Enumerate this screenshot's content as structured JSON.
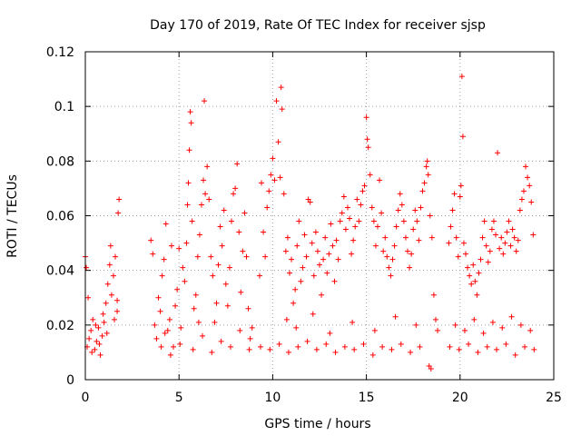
{
  "chart_data": {
    "type": "scatter",
    "title": "Day 170 of 2019, Rate Of TEC Index for receiver sjsp",
    "xlabel": "GPS time / hours",
    "ylabel": "ROTI / TECUs",
    "xlim": [
      0,
      25
    ],
    "ylim": [
      0,
      0.12
    ],
    "x_ticks": [
      0,
      5,
      10,
      15,
      20,
      25
    ],
    "x_tick_labels": [
      "0",
      "5",
      "10",
      "15",
      "20",
      "25"
    ],
    "y_ticks": [
      0,
      0.02,
      0.04,
      0.06,
      0.08,
      0.1,
      0.12
    ],
    "y_tick_labels": [
      "0",
      "0.02",
      "0.04",
      "0.06",
      "0.08",
      "0.1",
      "0.12"
    ],
    "grid": true,
    "marker": "+",
    "color": "#ff0000",
    "series": [
      {
        "name": "ROTI",
        "points": [
          [
            0.0,
            0.045
          ],
          [
            0.05,
            0.041
          ],
          [
            0.1,
            0.012
          ],
          [
            0.2,
            0.015
          ],
          [
            0.3,
            0.018
          ],
          [
            0.4,
            0.022
          ],
          [
            0.5,
            0.011
          ],
          [
            0.6,
            0.014
          ],
          [
            0.7,
            0.019
          ],
          [
            0.8,
            0.009
          ],
          [
            0.9,
            0.016
          ],
          [
            1.0,
            0.021
          ],
          [
            1.1,
            0.028
          ],
          [
            1.2,
            0.035
          ],
          [
            1.3,
            0.042
          ],
          [
            1.4,
            0.031
          ],
          [
            1.5,
            0.038
          ],
          [
            1.6,
            0.045
          ],
          [
            1.7,
            0.025
          ],
          [
            1.75,
            0.061
          ],
          [
            1.8,
            0.066
          ],
          [
            0.15,
            0.03
          ],
          [
            0.35,
            0.01
          ],
          [
            0.55,
            0.02
          ],
          [
            0.75,
            0.013
          ],
          [
            0.95,
            0.024
          ],
          [
            1.15,
            0.017
          ],
          [
            1.35,
            0.049
          ],
          [
            1.55,
            0.022
          ],
          [
            1.7,
            0.029
          ],
          [
            3.5,
            0.051
          ],
          [
            3.6,
            0.046
          ],
          [
            3.7,
            0.02
          ],
          [
            3.8,
            0.015
          ],
          [
            3.9,
            0.03
          ],
          [
            4.0,
            0.025
          ],
          [
            4.1,
            0.038
          ],
          [
            4.2,
            0.044
          ],
          [
            4.3,
            0.057
          ],
          [
            4.4,
            0.018
          ],
          [
            4.5,
            0.022
          ],
          [
            4.6,
            0.049
          ],
          [
            4.7,
            0.012
          ],
          [
            4.8,
            0.027
          ],
          [
            4.9,
            0.033
          ],
          [
            5.0,
            0.048
          ],
          [
            5.1,
            0.019
          ],
          [
            5.2,
            0.041
          ],
          [
            5.3,
            0.036
          ],
          [
            5.4,
            0.05
          ],
          [
            5.45,
            0.064
          ],
          [
            5.5,
            0.072
          ],
          [
            5.55,
            0.084
          ],
          [
            5.6,
            0.098
          ],
          [
            5.65,
            0.094
          ],
          [
            5.7,
            0.058
          ],
          [
            5.8,
            0.026
          ],
          [
            5.9,
            0.031
          ],
          [
            6.0,
            0.045
          ],
          [
            6.1,
            0.053
          ],
          [
            6.2,
            0.064
          ],
          [
            6.3,
            0.073
          ],
          [
            6.35,
            0.102
          ],
          [
            6.4,
            0.068
          ],
          [
            6.5,
            0.078
          ],
          [
            6.6,
            0.066
          ],
          [
            6.7,
            0.045
          ],
          [
            6.8,
            0.038
          ],
          [
            6.9,
            0.021
          ],
          [
            7.0,
            0.028
          ],
          [
            7.1,
            0.042
          ],
          [
            7.2,
            0.056
          ],
          [
            7.3,
            0.049
          ],
          [
            7.4,
            0.062
          ],
          [
            7.5,
            0.035
          ],
          [
            7.6,
            0.027
          ],
          [
            7.7,
            0.041
          ],
          [
            7.8,
            0.058
          ],
          [
            7.9,
            0.068
          ],
          [
            8.0,
            0.07
          ],
          [
            8.1,
            0.079
          ],
          [
            8.2,
            0.054
          ],
          [
            8.3,
            0.032
          ],
          [
            8.4,
            0.047
          ],
          [
            8.5,
            0.061
          ],
          [
            8.6,
            0.045
          ],
          [
            8.7,
            0.026
          ],
          [
            8.8,
            0.015
          ],
          [
            8.9,
            0.019
          ],
          [
            4.05,
            0.012
          ],
          [
            4.55,
            0.009
          ],
          [
            5.05,
            0.013
          ],
          [
            5.75,
            0.011
          ],
          [
            6.25,
            0.016
          ],
          [
            6.75,
            0.01
          ],
          [
            7.25,
            0.014
          ],
          [
            7.75,
            0.012
          ],
          [
            8.25,
            0.018
          ],
          [
            8.75,
            0.011
          ],
          [
            4.25,
            0.017
          ],
          [
            6.05,
            0.021
          ],
          [
            9.3,
            0.038
          ],
          [
            9.4,
            0.072
          ],
          [
            9.5,
            0.054
          ],
          [
            9.6,
            0.045
          ],
          [
            9.7,
            0.063
          ],
          [
            9.8,
            0.069
          ],
          [
            9.9,
            0.075
          ],
          [
            10.0,
            0.081
          ],
          [
            10.1,
            0.073
          ],
          [
            10.2,
            0.102
          ],
          [
            10.3,
            0.087
          ],
          [
            10.4,
            0.074
          ],
          [
            10.45,
            0.107
          ],
          [
            10.5,
            0.099
          ],
          [
            10.6,
            0.068
          ],
          [
            10.7,
            0.047
          ],
          [
            10.8,
            0.052
          ],
          [
            10.9,
            0.039
          ],
          [
            11.0,
            0.044
          ],
          [
            11.1,
            0.028
          ],
          [
            11.2,
            0.033
          ],
          [
            11.3,
            0.049
          ],
          [
            11.4,
            0.058
          ],
          [
            11.5,
            0.036
          ],
          [
            11.6,
            0.041
          ],
          [
            11.7,
            0.053
          ],
          [
            11.8,
            0.045
          ],
          [
            11.9,
            0.066
          ],
          [
            12.0,
            0.065
          ],
          [
            12.1,
            0.05
          ],
          [
            12.2,
            0.038
          ],
          [
            12.3,
            0.054
          ],
          [
            12.4,
            0.047
          ],
          [
            12.5,
            0.042
          ],
          [
            12.6,
            0.031
          ],
          [
            12.7,
            0.044
          ],
          [
            12.8,
            0.052
          ],
          [
            12.9,
            0.039
          ],
          [
            13.0,
            0.046
          ],
          [
            13.1,
            0.057
          ],
          [
            13.2,
            0.049
          ],
          [
            13.3,
            0.036
          ],
          [
            13.4,
            0.051
          ],
          [
            13.5,
            0.044
          ],
          [
            13.6,
            0.058
          ],
          [
            13.7,
            0.061
          ],
          [
            13.8,
            0.067
          ],
          [
            13.9,
            0.055
          ],
          [
            14.0,
            0.063
          ],
          [
            14.1,
            0.059
          ],
          [
            14.2,
            0.046
          ],
          [
            14.3,
            0.051
          ],
          [
            14.4,
            0.056
          ],
          [
            14.5,
            0.066
          ],
          [
            14.6,
            0.058
          ],
          [
            14.7,
            0.064
          ],
          [
            14.8,
            0.069
          ],
          [
            14.9,
            0.071
          ],
          [
            15.0,
            0.096
          ],
          [
            15.05,
            0.088
          ],
          [
            15.1,
            0.085
          ],
          [
            15.2,
            0.075
          ],
          [
            15.3,
            0.063
          ],
          [
            15.4,
            0.058
          ],
          [
            15.5,
            0.049
          ],
          [
            15.6,
            0.056
          ],
          [
            15.7,
            0.073
          ],
          [
            15.8,
            0.061
          ],
          [
            15.9,
            0.047
          ],
          [
            16.0,
            0.052
          ],
          [
            16.1,
            0.045
          ],
          [
            16.2,
            0.041
          ],
          [
            16.3,
            0.038
          ],
          [
            16.4,
            0.044
          ],
          [
            16.5,
            0.049
          ],
          [
            16.6,
            0.056
          ],
          [
            16.7,
            0.062
          ],
          [
            16.8,
            0.068
          ],
          [
            16.9,
            0.064
          ],
          [
            17.0,
            0.058
          ],
          [
            17.1,
            0.052
          ],
          [
            17.2,
            0.047
          ],
          [
            17.3,
            0.041
          ],
          [
            17.4,
            0.046
          ],
          [
            17.5,
            0.055
          ],
          [
            17.6,
            0.062
          ],
          [
            17.7,
            0.058
          ],
          [
            17.8,
            0.051
          ],
          [
            17.9,
            0.063
          ],
          [
            18.0,
            0.069
          ],
          [
            18.1,
            0.072
          ],
          [
            18.2,
            0.078
          ],
          [
            18.25,
            0.08
          ],
          [
            18.3,
            0.075
          ],
          [
            18.4,
            0.06
          ],
          [
            18.5,
            0.052
          ],
          [
            18.6,
            0.031
          ],
          [
            18.7,
            0.022
          ],
          [
            18.8,
            0.018
          ],
          [
            9.35,
            0.012
          ],
          [
            9.85,
            0.011
          ],
          [
            10.35,
            0.013
          ],
          [
            10.85,
            0.01
          ],
          [
            11.35,
            0.012
          ],
          [
            11.85,
            0.014
          ],
          [
            12.35,
            0.011
          ],
          [
            12.85,
            0.013
          ],
          [
            13.35,
            0.01
          ],
          [
            13.85,
            0.012
          ],
          [
            14.35,
            0.011
          ],
          [
            14.85,
            0.013
          ],
          [
            15.35,
            0.009
          ],
          [
            15.85,
            0.012
          ],
          [
            16.35,
            0.011
          ],
          [
            16.85,
            0.013
          ],
          [
            17.35,
            0.01
          ],
          [
            17.85,
            0.012
          ],
          [
            18.35,
            0.005
          ],
          [
            18.45,
            0.004
          ],
          [
            10.75,
            0.022
          ],
          [
            11.25,
            0.019
          ],
          [
            12.15,
            0.024
          ],
          [
            13.05,
            0.017
          ],
          [
            14.25,
            0.021
          ],
          [
            15.45,
            0.018
          ],
          [
            16.55,
            0.023
          ],
          [
            17.65,
            0.02
          ],
          [
            19.4,
            0.05
          ],
          [
            19.5,
            0.056
          ],
          [
            19.6,
            0.062
          ],
          [
            19.7,
            0.068
          ],
          [
            19.8,
            0.052
          ],
          [
            19.9,
            0.045
          ],
          [
            20.0,
            0.067
          ],
          [
            20.05,
            0.071
          ],
          [
            20.1,
            0.111
          ],
          [
            20.15,
            0.089
          ],
          [
            20.2,
            0.05
          ],
          [
            20.3,
            0.046
          ],
          [
            20.4,
            0.041
          ],
          [
            20.5,
            0.038
          ],
          [
            20.6,
            0.035
          ],
          [
            20.7,
            0.042
          ],
          [
            20.8,
            0.036
          ],
          [
            20.9,
            0.031
          ],
          [
            21.0,
            0.039
          ],
          [
            21.1,
            0.044
          ],
          [
            21.2,
            0.052
          ],
          [
            21.3,
            0.058
          ],
          [
            21.4,
            0.049
          ],
          [
            21.5,
            0.043
          ],
          [
            21.6,
            0.047
          ],
          [
            21.7,
            0.055
          ],
          [
            21.8,
            0.058
          ],
          [
            21.9,
            0.053
          ],
          [
            22.0,
            0.083
          ],
          [
            22.1,
            0.048
          ],
          [
            22.2,
            0.052
          ],
          [
            22.3,
            0.046
          ],
          [
            22.4,
            0.05
          ],
          [
            22.5,
            0.054
          ],
          [
            22.6,
            0.058
          ],
          [
            22.7,
            0.049
          ],
          [
            22.8,
            0.055
          ],
          [
            22.9,
            0.052
          ],
          [
            23.0,
            0.047
          ],
          [
            23.1,
            0.051
          ],
          [
            23.2,
            0.062
          ],
          [
            23.3,
            0.066
          ],
          [
            23.4,
            0.069
          ],
          [
            23.5,
            0.078
          ],
          [
            23.6,
            0.074
          ],
          [
            23.7,
            0.071
          ],
          [
            23.8,
            0.065
          ],
          [
            23.9,
            0.053
          ],
          [
            19.45,
            0.012
          ],
          [
            19.95,
            0.011
          ],
          [
            20.45,
            0.013
          ],
          [
            20.95,
            0.01
          ],
          [
            21.45,
            0.012
          ],
          [
            21.95,
            0.011
          ],
          [
            22.45,
            0.013
          ],
          [
            22.95,
            0.009
          ],
          [
            23.45,
            0.012
          ],
          [
            23.95,
            0.011
          ],
          [
            19.75,
            0.02
          ],
          [
            20.25,
            0.018
          ],
          [
            20.75,
            0.022
          ],
          [
            21.25,
            0.017
          ],
          [
            21.75,
            0.021
          ],
          [
            22.25,
            0.019
          ],
          [
            22.75,
            0.023
          ],
          [
            23.25,
            0.02
          ],
          [
            23.75,
            0.018
          ]
        ]
      }
    ]
  }
}
